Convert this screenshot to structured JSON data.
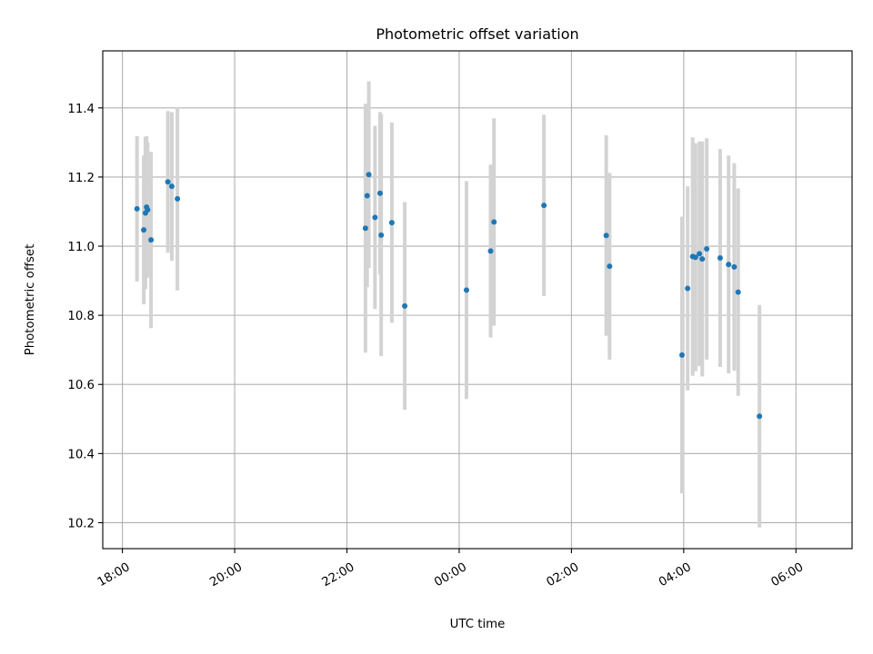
{
  "chart_data": {
    "type": "scatter",
    "title": "Photometric offset variation",
    "xlabel": "UTC time",
    "ylabel": "Photometric offset",
    "x_unit": "hours since 18:00 UTC",
    "xlim": [
      -0.35,
      13
    ],
    "ylim": [
      10.125,
      11.565
    ],
    "x_ticks": [
      {
        "value": 0,
        "label": "18:00"
      },
      {
        "value": 2,
        "label": "20:00"
      },
      {
        "value": 4,
        "label": "22:00"
      },
      {
        "value": 6,
        "label": "00:00"
      },
      {
        "value": 8,
        "label": "02:00"
      },
      {
        "value": 10,
        "label": "04:00"
      },
      {
        "value": 12,
        "label": "06:00"
      }
    ],
    "y_ticks": [
      {
        "value": 10.2,
        "label": "10.2"
      },
      {
        "value": 10.4,
        "label": "10.4"
      },
      {
        "value": 10.6,
        "label": "10.6"
      },
      {
        "value": 10.8,
        "label": "10.8"
      },
      {
        "value": 11.0,
        "label": "11.0"
      },
      {
        "value": 11.2,
        "label": "11.2"
      },
      {
        "value": 11.4,
        "label": "11.4"
      }
    ],
    "grid": true,
    "marker_color": "#1f77b4",
    "errorbar_color": "#d3d3d3",
    "points": [
      {
        "x": 0.26,
        "y": 11.108,
        "err": 0.21
      },
      {
        "x": 0.38,
        "y": 11.047,
        "err": 0.215
      },
      {
        "x": 0.41,
        "y": 11.096,
        "err": 0.22
      },
      {
        "x": 0.43,
        "y": 11.113,
        "err": 0.205
      },
      {
        "x": 0.45,
        "y": 11.105,
        "err": 0.195
      },
      {
        "x": 0.51,
        "y": 11.018,
        "err": 0.255
      },
      {
        "x": 0.81,
        "y": 11.186,
        "err": 0.205
      },
      {
        "x": 0.88,
        "y": 11.173,
        "err": 0.215
      },
      {
        "x": 0.98,
        "y": 11.137,
        "err": 0.265
      },
      {
        "x": 4.33,
        "y": 11.052,
        "err": 0.36
      },
      {
        "x": 4.36,
        "y": 11.146,
        "err": 0.265
      },
      {
        "x": 4.39,
        "y": 11.207,
        "err": 0.27
      },
      {
        "x": 4.5,
        "y": 11.083,
        "err": 0.265
      },
      {
        "x": 4.59,
        "y": 11.153,
        "err": 0.235
      },
      {
        "x": 4.61,
        "y": 11.032,
        "err": 0.35
      },
      {
        "x": 4.8,
        "y": 11.068,
        "err": 0.29
      },
      {
        "x": 5.03,
        "y": 10.827,
        "err": 0.3
      },
      {
        "x": 6.13,
        "y": 10.873,
        "err": 0.315
      },
      {
        "x": 6.56,
        "y": 10.986,
        "err": 0.25
      },
      {
        "x": 6.62,
        "y": 11.07,
        "err": 0.3
      },
      {
        "x": 7.51,
        "y": 11.118,
        "err": 0.262
      },
      {
        "x": 8.62,
        "y": 11.031,
        "err": 0.29
      },
      {
        "x": 8.68,
        "y": 10.942,
        "err": 0.27
      },
      {
        "x": 9.97,
        "y": 10.685,
        "err": 0.4
      },
      {
        "x": 10.07,
        "y": 10.878,
        "err": 0.295
      },
      {
        "x": 10.16,
        "y": 10.97,
        "err": 0.345
      },
      {
        "x": 10.21,
        "y": 10.968,
        "err": 0.33
      },
      {
        "x": 10.28,
        "y": 10.978,
        "err": 0.325
      },
      {
        "x": 10.33,
        "y": 10.963,
        "err": 0.34
      },
      {
        "x": 10.41,
        "y": 10.992,
        "err": 0.32
      },
      {
        "x": 10.65,
        "y": 10.966,
        "err": 0.315
      },
      {
        "x": 10.8,
        "y": 10.947,
        "err": 0.315
      },
      {
        "x": 10.9,
        "y": 10.94,
        "err": 0.3
      },
      {
        "x": 10.97,
        "y": 10.867,
        "err": 0.3
      },
      {
        "x": 11.35,
        "y": 10.508,
        "err": 0.322
      }
    ]
  }
}
